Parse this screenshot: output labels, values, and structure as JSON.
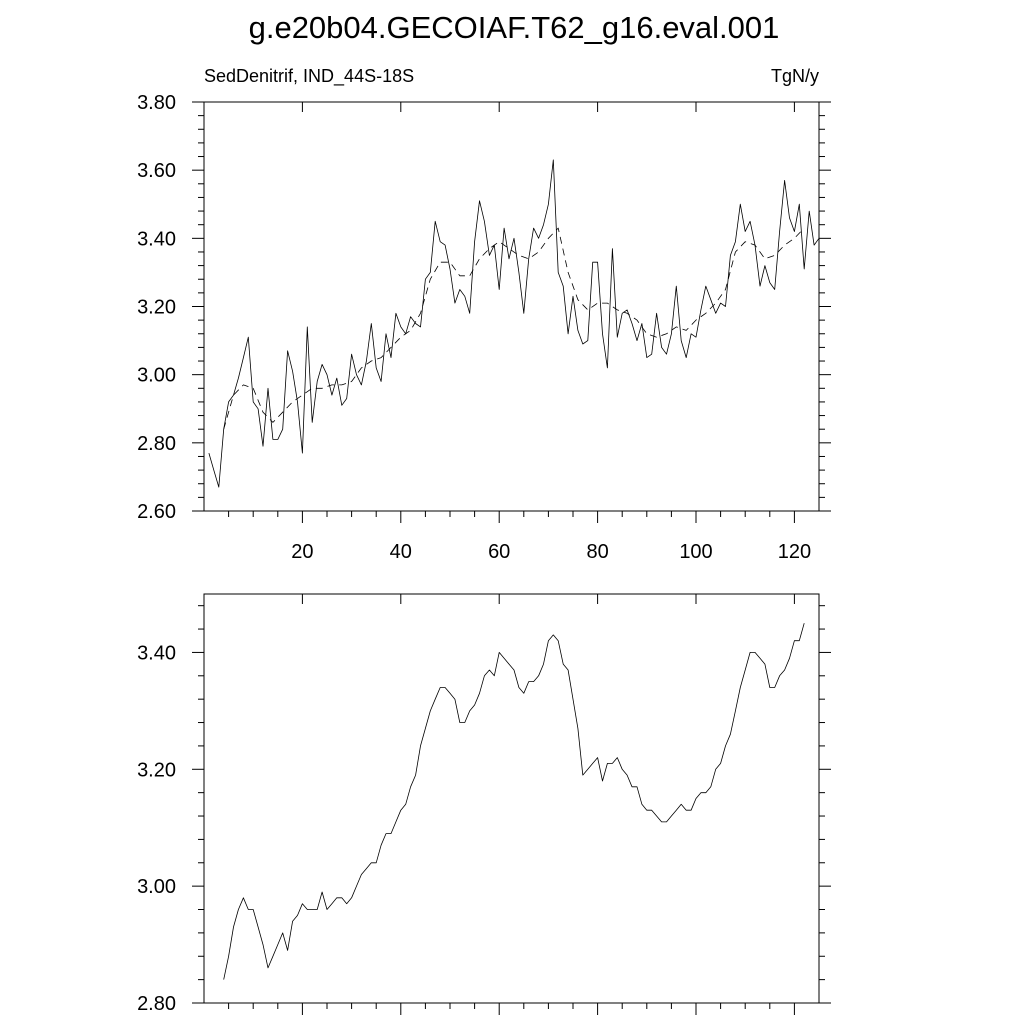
{
  "title": "g.e20b04.GECOIAF.T62_g16.eval.001",
  "chart_data": [
    {
      "type": "line",
      "left_label": "SedDenitrif, IND_44S-18S",
      "right_label": "TgN/y",
      "xlim": [
        0,
        125
      ],
      "ylim": [
        2.6,
        3.8
      ],
      "x_ticks": [
        20,
        40,
        60,
        80,
        100,
        120
      ],
      "x_tick_labels": [
        "20",
        "40",
        "60",
        "80",
        "100",
        "120"
      ],
      "y_ticks": [
        2.6,
        2.8,
        3.0,
        3.2,
        3.4,
        3.6,
        3.8
      ],
      "y_tick_labels": [
        "2.60",
        "2.80",
        "3.00",
        "3.20",
        "3.40",
        "3.60",
        "3.80"
      ],
      "grid": false,
      "series": [
        {
          "style": "solid",
          "x": [
            1,
            2,
            3,
            4,
            5,
            6,
            7,
            8,
            9,
            10,
            11,
            12,
            13,
            14,
            15,
            16,
            17,
            18,
            19,
            20,
            21,
            22,
            23,
            24,
            25,
            26,
            27,
            28,
            29,
            30,
            31,
            32,
            33,
            34,
            35,
            36,
            37,
            38,
            39,
            40,
            41,
            42,
            43,
            44,
            45,
            46,
            47,
            48,
            49,
            50,
            51,
            52,
            53,
            54,
            55,
            56,
            57,
            58,
            59,
            60,
            61,
            62,
            63,
            64,
            65,
            66,
            67,
            68,
            69,
            70,
            71,
            72,
            73,
            74,
            75,
            76,
            77,
            78,
            79,
            80,
            81,
            82,
            83,
            84,
            85,
            86,
            87,
            88,
            89,
            90,
            91,
            92,
            93,
            94,
            95,
            96,
            97,
            98,
            99,
            100,
            101,
            102,
            103,
            104,
            105,
            106,
            107,
            108,
            109,
            110,
            111,
            112,
            113,
            114,
            115,
            116,
            117,
            118,
            119,
            120,
            121,
            122,
            123,
            124,
            125
          ],
          "y": [
            2.77,
            2.72,
            2.67,
            2.84,
            2.92,
            2.94,
            2.99,
            3.05,
            3.11,
            2.92,
            2.9,
            2.79,
            2.96,
            2.81,
            2.81,
            2.84,
            3.07,
            3.01,
            2.92,
            2.77,
            3.14,
            2.86,
            2.98,
            3.03,
            3.0,
            2.94,
            2.99,
            2.91,
            2.93,
            3.06,
            3.0,
            2.97,
            3.04,
            3.15,
            3.02,
            2.98,
            3.12,
            3.05,
            3.18,
            3.14,
            3.12,
            3.17,
            3.15,
            3.14,
            3.28,
            3.3,
            3.45,
            3.39,
            3.38,
            3.31,
            3.21,
            3.25,
            3.23,
            3.18,
            3.39,
            3.51,
            3.45,
            3.35,
            3.38,
            3.25,
            3.43,
            3.34,
            3.4,
            3.3,
            3.18,
            3.34,
            3.43,
            3.4,
            3.44,
            3.5,
            3.63,
            3.3,
            3.26,
            3.12,
            3.23,
            3.13,
            3.09,
            3.1,
            3.33,
            3.33,
            3.12,
            3.02,
            3.37,
            3.11,
            3.18,
            3.19,
            3.15,
            3.1,
            3.15,
            3.05,
            3.06,
            3.18,
            3.08,
            3.06,
            3.12,
            3.26,
            3.1,
            3.05,
            3.12,
            3.11,
            3.19,
            3.26,
            3.22,
            3.18,
            3.21,
            3.2,
            3.35,
            3.39,
            3.5,
            3.42,
            3.45,
            3.38,
            3.26,
            3.32,
            3.27,
            3.25,
            3.42,
            3.57,
            3.46,
            3.42,
            3.5,
            3.31,
            3.48,
            3.38,
            3.4
          ]
        },
        {
          "style": "dashed",
          "x": [
            4,
            6,
            8,
            10,
            12,
            14,
            16,
            18,
            20,
            22,
            24,
            26,
            28,
            30,
            32,
            34,
            36,
            38,
            40,
            42,
            44,
            46,
            48,
            50,
            52,
            54,
            56,
            58,
            60,
            62,
            64,
            66,
            68,
            70,
            72,
            74,
            76,
            78,
            80,
            82,
            84,
            86,
            88,
            90,
            92,
            94,
            96,
            98,
            100,
            102,
            104,
            106,
            108,
            110,
            112,
            114,
            116,
            118,
            120,
            122
          ],
          "y": [
            2.84,
            2.94,
            2.97,
            2.96,
            2.89,
            2.86,
            2.89,
            2.92,
            2.94,
            2.96,
            2.96,
            2.97,
            2.97,
            2.98,
            3.02,
            3.04,
            3.05,
            3.08,
            3.11,
            3.13,
            3.18,
            3.28,
            3.33,
            3.33,
            3.29,
            3.29,
            3.34,
            3.37,
            3.39,
            3.37,
            3.35,
            3.34,
            3.36,
            3.4,
            3.43,
            3.3,
            3.22,
            3.19,
            3.21,
            3.21,
            3.19,
            3.18,
            3.16,
            3.12,
            3.11,
            3.12,
            3.14,
            3.13,
            3.16,
            3.18,
            3.21,
            3.25,
            3.36,
            3.39,
            3.38,
            3.34,
            3.35,
            3.38,
            3.4,
            3.43
          ]
        }
      ]
    },
    {
      "type": "line",
      "xlim": [
        0,
        125
      ],
      "ylim": [
        2.8,
        3.5
      ],
      "x_ticks": [
        20,
        40,
        60,
        80,
        100,
        120
      ],
      "y_ticks": [
        2.8,
        3.0,
        3.2,
        3.4
      ],
      "y_tick_labels": [
        "2.80",
        "3.00",
        "3.20",
        "3.40"
      ],
      "grid": false,
      "series": [
        {
          "style": "solid",
          "x": [
            4,
            5,
            6,
            7,
            8,
            9,
            10,
            11,
            12,
            13,
            14,
            15,
            16,
            17,
            18,
            19,
            20,
            21,
            22,
            23,
            24,
            25,
            26,
            27,
            28,
            29,
            30,
            31,
            32,
            33,
            34,
            35,
            36,
            37,
            38,
            39,
            40,
            41,
            42,
            43,
            44,
            45,
            46,
            47,
            48,
            49,
            50,
            51,
            52,
            53,
            54,
            55,
            56,
            57,
            58,
            59,
            60,
            61,
            62,
            63,
            64,
            65,
            66,
            67,
            68,
            69,
            70,
            71,
            72,
            73,
            74,
            75,
            76,
            77,
            78,
            79,
            80,
            81,
            82,
            83,
            84,
            85,
            86,
            87,
            88,
            89,
            90,
            91,
            92,
            93,
            94,
            95,
            96,
            97,
            98,
            99,
            100,
            101,
            102,
            103,
            104,
            105,
            106,
            107,
            108,
            109,
            110,
            111,
            112,
            113,
            114,
            115,
            116,
            117,
            118,
            119,
            120,
            121,
            122
          ],
          "y": [
            2.84,
            2.88,
            2.93,
            2.96,
            2.98,
            2.96,
            2.96,
            2.93,
            2.9,
            2.86,
            2.88,
            2.9,
            2.92,
            2.89,
            2.94,
            2.95,
            2.97,
            2.96,
            2.96,
            2.96,
            2.99,
            2.96,
            2.97,
            2.98,
            2.98,
            2.97,
            2.98,
            3.0,
            3.02,
            3.03,
            3.04,
            3.04,
            3.07,
            3.09,
            3.09,
            3.11,
            3.13,
            3.14,
            3.17,
            3.19,
            3.24,
            3.27,
            3.3,
            3.32,
            3.34,
            3.34,
            3.33,
            3.32,
            3.28,
            3.28,
            3.3,
            3.31,
            3.33,
            3.36,
            3.37,
            3.36,
            3.4,
            3.39,
            3.38,
            3.37,
            3.34,
            3.33,
            3.35,
            3.35,
            3.36,
            3.38,
            3.42,
            3.43,
            3.42,
            3.38,
            3.37,
            3.32,
            3.27,
            3.19,
            3.2,
            3.21,
            3.22,
            3.18,
            3.21,
            3.21,
            3.22,
            3.2,
            3.19,
            3.17,
            3.17,
            3.14,
            3.13,
            3.13,
            3.12,
            3.11,
            3.11,
            3.12,
            3.13,
            3.14,
            3.13,
            3.13,
            3.15,
            3.16,
            3.16,
            3.17,
            3.2,
            3.21,
            3.24,
            3.26,
            3.3,
            3.34,
            3.37,
            3.4,
            3.4,
            3.39,
            3.38,
            3.34,
            3.34,
            3.36,
            3.37,
            3.39,
            3.42,
            3.42,
            3.45
          ]
        }
      ]
    }
  ]
}
